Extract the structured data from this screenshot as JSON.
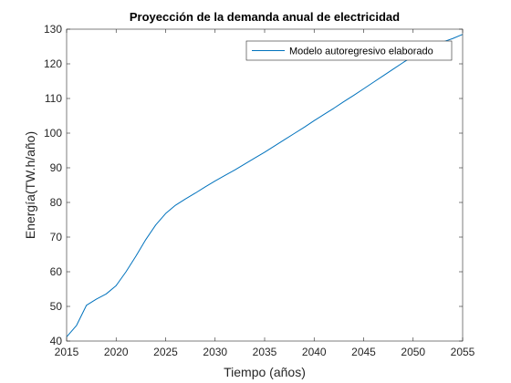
{
  "chart_data": {
    "type": "line",
    "title": "Proyección de la demanda anual de electricidad",
    "xlabel": "Tiempo (años)",
    "ylabel": "Energía(TW.h/año)",
    "xlim": [
      2015,
      2055
    ],
    "ylim": [
      40,
      130
    ],
    "xticks": [
      2015,
      2020,
      2025,
      2030,
      2035,
      2040,
      2045,
      2050,
      2055
    ],
    "yticks": [
      40,
      50,
      60,
      70,
      80,
      90,
      100,
      110,
      120,
      130
    ],
    "grid": false,
    "legend_position": "top-right",
    "series": [
      {
        "name": "Modelo autoregresivo elaborado",
        "color": "#0072BD",
        "x": [
          2015,
          2016,
          2017,
          2018,
          2019,
          2020,
          2021,
          2022,
          2023,
          2024,
          2025,
          2026,
          2027,
          2028,
          2029,
          2030,
          2031,
          2032,
          2033,
          2034,
          2035,
          2036,
          2037,
          2038,
          2039,
          2040,
          2041,
          2042,
          2043,
          2044,
          2045,
          2046,
          2047,
          2048,
          2049,
          2050,
          2051,
          2052,
          2053,
          2054,
          2055
        ],
        "y": [
          41.2,
          44.5,
          50.3,
          52.1,
          53.6,
          56.0,
          60.0,
          64.5,
          69.3,
          73.5,
          76.8,
          79.2,
          81.0,
          82.7,
          84.5,
          86.2,
          87.8,
          89.4,
          91.1,
          92.8,
          94.5,
          96.3,
          98.1,
          99.9,
          101.7,
          103.6,
          105.4,
          107.2,
          109.1,
          110.9,
          112.8,
          114.7,
          116.6,
          118.5,
          120.4,
          122.2,
          124.1,
          125.2,
          126.3,
          127.3,
          128.5
        ]
      }
    ]
  }
}
